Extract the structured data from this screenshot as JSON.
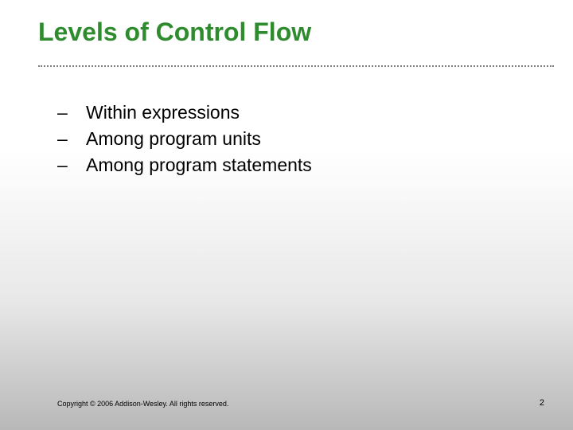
{
  "slide": {
    "title": "Levels of Control Flow",
    "title_color": "#2e8b2e",
    "title_fontsize": 32,
    "bullets": [
      {
        "marker": "–",
        "text": "Within expressions"
      },
      {
        "marker": "–",
        "text": "Among program units"
      },
      {
        "marker": "–",
        "text": "Among program statements"
      }
    ],
    "bullet_fontsize": 23,
    "bullet_color": "#000000",
    "divider_color": "#808080",
    "background_gradient": [
      "#ffffff",
      "#ffffff",
      "#e8e8e8",
      "#b8b8b8"
    ],
    "copyright": "Copyright © 2006 Addison-Wesley. All rights reserved.",
    "page_number": "2"
  }
}
